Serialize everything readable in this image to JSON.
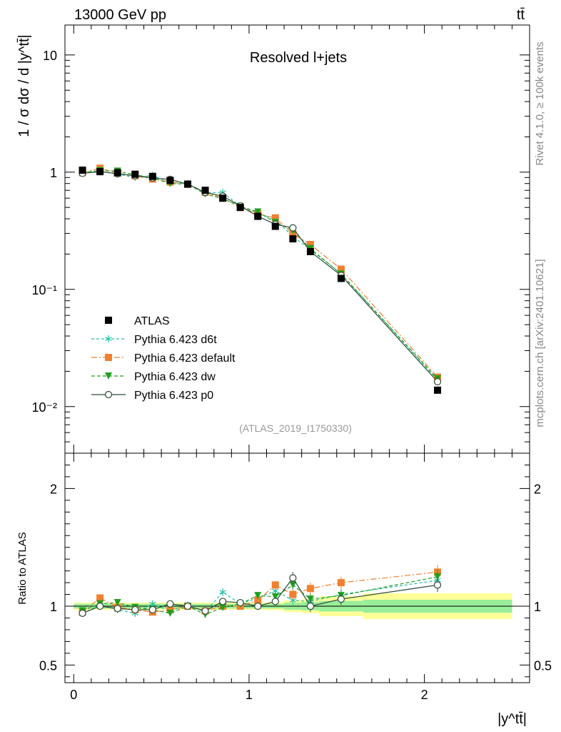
{
  "header": {
    "left": "13000 GeV pp",
    "right": "tt̄"
  },
  "side_text": {
    "rivet": "Rivet 4.1.0, ≥ 100k events",
    "mcplots": "mcplots.cern.ch [arXiv:2401.10621]"
  },
  "chart_data": {
    "type": "line",
    "title": "Resolved l+jets",
    "watermark": "(ATLAS_2019_I1750330)",
    "xlabel": "|y^tt̄|",
    "ylabel": "1 / σ dσ / d |y^tt̄|",
    "ratio_ylabel": "Ratio to ATLAS",
    "xlim": [
      -0.05,
      2.6
    ],
    "ylim": [
      0.004,
      18
    ],
    "yscale": "log",
    "ratio_ylim": [
      0.35,
      2.3
    ],
    "x_tick_labels": [
      "0",
      "1",
      "2"
    ],
    "y_tick_labels": [
      "10⁻²",
      "10⁻¹",
      "1",
      "10"
    ],
    "ratio_tick_labels": [
      "0.5",
      "1",
      "2"
    ],
    "x_bins": [
      [
        0.0,
        0.1
      ],
      [
        0.1,
        0.2
      ],
      [
        0.2,
        0.3
      ],
      [
        0.3,
        0.4
      ],
      [
        0.4,
        0.5
      ],
      [
        0.5,
        0.6
      ],
      [
        0.6,
        0.7
      ],
      [
        0.7,
        0.8
      ],
      [
        0.8,
        0.9
      ],
      [
        0.9,
        1.0
      ],
      [
        1.0,
        1.1
      ],
      [
        1.1,
        1.2
      ],
      [
        1.2,
        1.3
      ],
      [
        1.3,
        1.4
      ],
      [
        1.4,
        1.65
      ],
      [
        1.65,
        2.5
      ]
    ],
    "x": [
      0.05,
      0.15,
      0.25,
      0.35,
      0.45,
      0.55,
      0.65,
      0.75,
      0.85,
      0.95,
      1.05,
      1.15,
      1.25,
      1.35,
      1.525,
      2.075
    ],
    "data": {
      "name": "ATLAS",
      "color": "#000000",
      "values": [
        1.04,
        1.01,
        0.99,
        0.96,
        0.92,
        0.85,
        0.79,
        0.7,
        0.6,
        0.5,
        0.42,
        0.345,
        0.27,
        0.21,
        0.124,
        0.0138
      ],
      "band_stat": [
        0.02,
        0.02,
        0.02,
        0.02,
        0.02,
        0.02,
        0.02,
        0.02,
        0.02,
        0.02,
        0.02,
        0.02,
        0.03,
        0.035,
        0.045,
        0.055
      ],
      "band_total": [
        0.03,
        0.03,
        0.03,
        0.03,
        0.03,
        0.03,
        0.03,
        0.03,
        0.03,
        0.03,
        0.03,
        0.035,
        0.05,
        0.06,
        0.085,
        0.11
      ]
    },
    "series": [
      {
        "name": "Pythia 6.423 d6t",
        "color": "#20c0a0",
        "marker": "asterisk",
        "dash": "4,3",
        "ratio": [
          0.94,
          1.01,
          0.97,
          0.94,
          1.02,
          0.96,
          1.01,
          0.95,
          1.12,
          1.02,
          1.07,
          1.13,
          1.05,
          1.04,
          1.1,
          1.22
        ],
        "ratio_err": [
          0.02,
          0.02,
          0.02,
          0.025,
          0.025,
          0.025,
          0.03,
          0.03,
          0.03,
          0.03,
          0.03,
          0.035,
          0.04,
          0.05,
          0.05,
          0.06
        ]
      },
      {
        "name": "Pythia 6.423 default",
        "color": "#f08030",
        "marker": "square",
        "dash": "8,3,2,3",
        "ratio": [
          0.95,
          1.07,
          0.99,
          0.97,
          0.95,
          0.97,
          1.0,
          0.96,
          1.0,
          1.0,
          1.05,
          1.18,
          1.1,
          1.15,
          1.2,
          1.29
        ],
        "ratio_err": [
          0.02,
          0.02,
          0.02,
          0.025,
          0.025,
          0.025,
          0.03,
          0.03,
          0.03,
          0.03,
          0.03,
          0.035,
          0.04,
          0.05,
          0.05,
          0.06
        ]
      },
      {
        "name": "Pythia 6.423 dw",
        "color": "#20a020",
        "marker": "triangle-down",
        "dash": "5,3",
        "ratio": [
          0.96,
          1.02,
          1.03,
          0.99,
          0.97,
          0.94,
          1.0,
          0.93,
          0.99,
          1.02,
          1.09,
          1.08,
          1.18,
          1.06,
          1.09,
          1.25
        ],
        "ratio_err": [
          0.02,
          0.02,
          0.02,
          0.025,
          0.025,
          0.025,
          0.03,
          0.03,
          0.03,
          0.03,
          0.03,
          0.035,
          0.04,
          0.05,
          0.05,
          0.06
        ]
      },
      {
        "name": "Pythia 6.423 p0",
        "color": "#2e4a38",
        "marker": "circle-open",
        "dash": "",
        "ratio": [
          0.94,
          1.0,
          0.98,
          0.97,
          0.97,
          1.02,
          1.0,
          0.96,
          1.04,
          1.03,
          1.0,
          1.04,
          1.24,
          1.0,
          1.06,
          1.18
        ],
        "ratio_err": [
          0.02,
          0.02,
          0.02,
          0.025,
          0.025,
          0.025,
          0.03,
          0.03,
          0.03,
          0.03,
          0.03,
          0.035,
          0.05,
          0.05,
          0.05,
          0.06
        ]
      }
    ]
  }
}
